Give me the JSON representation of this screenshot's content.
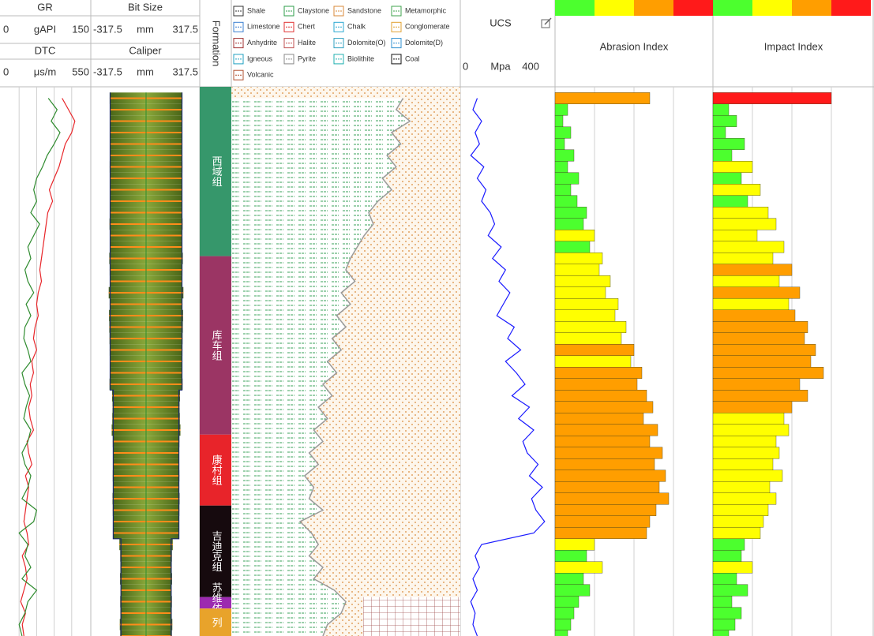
{
  "chart_data": {
    "type": "well-log",
    "tracks": {
      "gr": {
        "name": "GR",
        "unit": "gAPI",
        "xlim": [
          0,
          150
        ],
        "xticks": [
          30,
          60,
          90,
          120
        ],
        "color": "#2e8b2e",
        "values": [
          null,
          80,
          95,
          85,
          100,
          90,
          78,
          70,
          60,
          55,
          60,
          50,
          65,
          55,
          45,
          50,
          40,
          45,
          55,
          42,
          50,
          40,
          38,
          45,
          50,
          35,
          40,
          48,
          42,
          38,
          50,
          45,
          35,
          40,
          50,
          45,
          35,
          60,
          55,
          30,
          45,
          40,
          50,
          35,
          60,
          45,
          40,
          30,
          35
        ]
      },
      "dtc": {
        "name": "DTC",
        "unit": "μs/m",
        "xlim": [
          0,
          550
        ],
        "color": "#e8262a",
        "values": [
          null,
          380,
          420,
          460,
          440,
          400,
          380,
          360,
          330,
          300,
          320,
          290,
          280,
          270,
          260,
          250,
          240,
          250,
          230,
          220,
          230,
          210,
          200,
          220,
          190,
          200,
          180,
          190,
          170,
          180,
          200,
          160,
          170,
          190,
          150,
          170,
          160,
          150,
          140,
          160,
          170,
          130,
          150,
          160,
          140,
          120,
          150,
          130,
          140
        ]
      },
      "bit_size": {
        "name": "Bit Size",
        "unit": "mm",
        "xlim": [
          -317.5,
          317.5
        ],
        "color": "#1a2a6e",
        "values": [
          null,
          444.5,
          444.5,
          444.5,
          444.5,
          444.5,
          444.5,
          444.5,
          444.5,
          444.5,
          444.5,
          444.5,
          444.5,
          444.5,
          444.5,
          444.5,
          444.5,
          444.5,
          444.5,
          444.5,
          444.5,
          444.5,
          444.5,
          444.5,
          444.5,
          444.5,
          444.5,
          406.4,
          406.4,
          406.4,
          406.4,
          406.4,
          406.4,
          406.4,
          406.4,
          406.4,
          406.4,
          406.4,
          406.4,
          406.4,
          311.15,
          311.15,
          311.15,
          311.15,
          311.15,
          311.15,
          311.15,
          311.15,
          311.15
        ]
      },
      "caliper": {
        "name": "Caliper",
        "unit": "mm",
        "xlim": [
          -317.5,
          317.5
        ],
        "color": "#6b8a26",
        "washout_color": "#ff8c1a",
        "values": [
          null,
          450,
          446,
          448,
          445,
          447,
          446,
          450,
          448,
          446,
          447,
          449,
          452,
          448,
          446,
          455,
          450,
          448,
          462,
          450,
          458,
          455,
          452,
          450,
          448,
          446,
          452,
          420,
          415,
          418,
          425,
          412,
          410,
          408,
          412,
          410,
          415,
          412,
          408,
          410,
          330,
          320,
          318,
          322,
          315,
          320,
          318,
          325,
          320
        ]
      },
      "formation": {
        "name": "Formation",
        "zones": [
          {
            "name": "西域组",
            "top": 0,
            "base": 14.8,
            "color": "#36976b"
          },
          {
            "name": "库车组",
            "top": 14.8,
            "base": 30.4,
            "color": "#9b3564"
          },
          {
            "name": "康村组",
            "top": 30.4,
            "base": 36.6,
            "color": "#e8242a"
          },
          {
            "name": "吉迪克组",
            "top": 36.6,
            "base": 44.6,
            "color": "#160a0e"
          },
          {
            "name": "苏维依组",
            "top": 44.6,
            "base": 45.6,
            "color": "#9c2ab0"
          },
          {
            "name": "列",
            "top": 45.6,
            "base": 48,
            "color": "#e8a32b"
          }
        ]
      },
      "lithology": {
        "xlim": [
          0,
          100
        ],
        "color": "#9a9a9a",
        "legend": [
          {
            "name": "Shale",
            "color": "#333333"
          },
          {
            "name": "Claystone",
            "color": "#2e9e4a"
          },
          {
            "name": "Sandstone",
            "color": "#d98a3a"
          },
          {
            "name": "Metamorphic",
            "color": "#3fa34d"
          },
          {
            "name": "Limestone",
            "color": "#3a7fd0"
          },
          {
            "name": "Chert",
            "color": "#e03030"
          },
          {
            "name": "Chalk",
            "color": "#2aa7d0"
          },
          {
            "name": "Conglomerate",
            "color": "#e0a030"
          },
          {
            "name": "Anhydrite",
            "color": "#a03030"
          },
          {
            "name": "Halite",
            "color": "#c05050"
          },
          {
            "name": "Dolomite(O)",
            "color": "#30a0c0"
          },
          {
            "name": "Dolomite(D)",
            "color": "#3090d0"
          },
          {
            "name": "Igneous",
            "color": "#20a0c0"
          },
          {
            "name": "Pyrite",
            "color": "#888888"
          },
          {
            "name": "Biolithite",
            "color": "#20b0b0"
          },
          {
            "name": "Coal",
            "color": "#111111"
          },
          {
            "name": "Volcanic",
            "color": "#b05030"
          }
        ],
        "values": [
          null,
          75,
          72,
          78,
          70,
          74,
          68,
          72,
          66,
          70,
          64,
          60,
          62,
          58,
          55,
          52,
          50,
          54,
          48,
          52,
          46,
          50,
          44,
          48,
          42,
          46,
          40,
          44,
          38,
          42,
          36,
          40,
          34,
          38,
          32,
          36,
          34,
          40,
          30,
          35,
          38,
          34,
          40,
          36,
          45,
          50,
          48,
          42,
          40
        ]
      },
      "ucs": {
        "name": "UCS",
        "unit": "Mpa",
        "xlim": [
          0,
          400
        ],
        "color": "#1a1aff",
        "values": [
          null,
          60,
          40,
          80,
          50,
          70,
          30,
          90,
          60,
          100,
          80,
          120,
          140,
          110,
          170,
          130,
          190,
          160,
          210,
          180,
          150,
          230,
          200,
          260,
          190,
          240,
          280,
          220,
          300,
          250,
          320,
          270,
          290,
          340,
          300,
          360,
          310,
          330,
          370,
          320,
          80,
          50,
          70,
          40,
          60,
          30,
          50,
          40,
          60
        ]
      },
      "abrasion": {
        "name": "Abrasion Index",
        "xlim": [
          0,
          100
        ],
        "xticks": [
          25,
          50,
          75
        ],
        "colors": [
          "#4cff2e",
          "#ffff00",
          "#ff9e00",
          "#ff1a1a"
        ],
        "values": [
          null,
          60,
          8,
          5,
          10,
          6,
          12,
          8,
          15,
          10,
          14,
          20,
          18,
          25,
          22,
          30,
          28,
          35,
          32,
          40,
          38,
          45,
          42,
          50,
          48,
          55,
          52,
          58,
          62,
          56,
          65,
          60,
          68,
          63,
          70,
          66,
          72,
          64,
          60,
          58,
          25,
          20,
          30,
          18,
          22,
          15,
          12,
          10,
          8
        ]
      },
      "impact": {
        "name": "Impact Index",
        "xlim": [
          0,
          100
        ],
        "xticks": [
          25,
          50,
          75
        ],
        "colors": [
          "#4cff2e",
          "#ffff00",
          "#ff9e00",
          "#ff1a1a"
        ],
        "values": [
          null,
          75,
          10,
          15,
          8,
          20,
          12,
          25,
          18,
          30,
          22,
          35,
          40,
          28,
          45,
          38,
          50,
          42,
          55,
          48,
          52,
          60,
          58,
          65,
          62,
          70,
          55,
          60,
          50,
          45,
          48,
          40,
          42,
          38,
          44,
          36,
          40,
          35,
          32,
          30,
          20,
          18,
          25,
          15,
          22,
          12,
          18,
          14,
          10
        ]
      }
    }
  }
}
